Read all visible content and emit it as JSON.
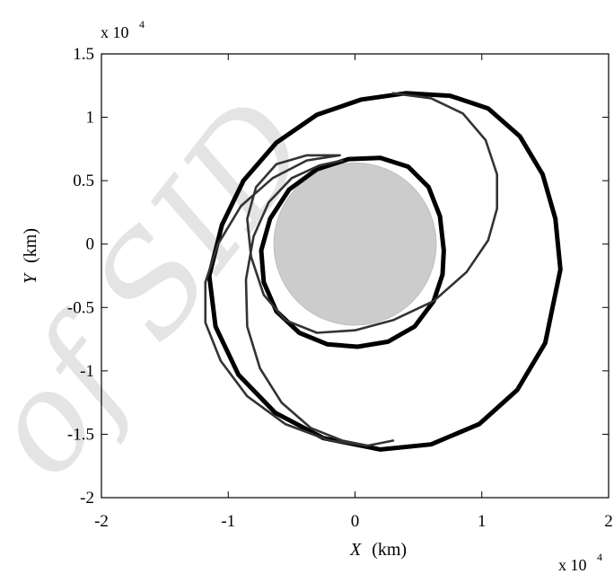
{
  "chart_data": {
    "type": "line",
    "title": "",
    "x_axis": {
      "label_var": "X",
      "label_unit": "(km)",
      "range": [
        -2,
        2
      ],
      "ticks": [
        -2,
        -1,
        0,
        1,
        2
      ],
      "tick_labels": [
        "-2",
        "-1",
        "0",
        "1",
        "2"
      ],
      "multiplier_base": "x 10",
      "multiplier_exp": "4"
    },
    "y_axis": {
      "label_var": "Y",
      "label_unit": "(km)",
      "range": [
        -2,
        1.5
      ],
      "ticks": [
        -2,
        -1.5,
        -1,
        -0.5,
        0,
        0.5,
        1,
        1.5
      ],
      "tick_labels": [
        "-2",
        "-1.5",
        "-1",
        "-0.5",
        "0",
        "0.5",
        "1",
        "1.5"
      ],
      "multiplier_base": "x 10",
      "multiplier_exp": "4"
    },
    "grid": false,
    "legend": null,
    "planet": {
      "center": [
        0,
        0
      ],
      "radius": 0.64,
      "fill": "#cccccc"
    },
    "series": [
      {
        "role": "inner orbit",
        "style": "thick-black",
        "points": [
          [
            0.7,
            -0.05
          ],
          [
            0.67,
            0.22
          ],
          [
            0.58,
            0.45
          ],
          [
            0.42,
            0.61
          ],
          [
            0.2,
            0.68
          ],
          [
            -0.05,
            0.67
          ],
          [
            -0.3,
            0.59
          ],
          [
            -0.52,
            0.43
          ],
          [
            -0.67,
            0.2
          ],
          [
            -0.74,
            -0.05
          ],
          [
            -0.72,
            -0.3
          ],
          [
            -0.62,
            -0.53
          ],
          [
            -0.44,
            -0.7
          ],
          [
            -0.22,
            -0.79
          ],
          [
            0.02,
            -0.81
          ],
          [
            0.26,
            -0.77
          ],
          [
            0.47,
            -0.65
          ],
          [
            0.62,
            -0.45
          ],
          [
            0.69,
            -0.24
          ],
          [
            0.7,
            -0.05
          ]
        ]
      },
      {
        "role": "outer orbit",
        "style": "thick-black",
        "points": [
          [
            1.62,
            -0.2
          ],
          [
            1.58,
            0.2
          ],
          [
            1.48,
            0.55
          ],
          [
            1.3,
            0.85
          ],
          [
            1.05,
            1.07
          ],
          [
            0.75,
            1.17
          ],
          [
            0.4,
            1.19
          ],
          [
            0.05,
            1.14
          ],
          [
            -0.3,
            1.02
          ],
          [
            -0.62,
            0.8
          ],
          [
            -0.88,
            0.5
          ],
          [
            -1.05,
            0.15
          ],
          [
            -1.15,
            -0.25
          ],
          [
            -1.1,
            -0.65
          ],
          [
            -0.92,
            -1.03
          ],
          [
            -0.63,
            -1.33
          ],
          [
            -0.25,
            -1.53
          ],
          [
            0.2,
            -1.62
          ],
          [
            0.6,
            -1.58
          ],
          [
            0.98,
            -1.42
          ],
          [
            1.28,
            -1.15
          ],
          [
            1.5,
            -0.78
          ],
          [
            1.62,
            -0.2
          ]
        ]
      },
      {
        "role": "transfer trajectory",
        "style": "thin-gray",
        "points": [
          [
            0.3,
            1.19
          ],
          [
            0.6,
            1.15
          ],
          [
            0.85,
            1.03
          ],
          [
            1.03,
            0.82
          ],
          [
            1.12,
            0.55
          ],
          [
            1.12,
            0.28
          ],
          [
            1.05,
            0.03
          ],
          [
            0.88,
            -0.22
          ],
          [
            0.62,
            -0.45
          ],
          [
            0.3,
            -0.6
          ],
          [
            0.0,
            -0.68
          ],
          [
            -0.3,
            -0.7
          ],
          [
            -0.55,
            -0.6
          ],
          [
            -0.72,
            -0.4
          ],
          [
            -0.82,
            -0.1
          ],
          [
            -0.85,
            0.2
          ],
          [
            -0.78,
            0.45
          ],
          [
            -0.62,
            0.63
          ],
          [
            -0.38,
            0.7
          ],
          [
            -0.12,
            0.7
          ],
          [
            -0.38,
            0.66
          ],
          [
            -0.65,
            0.52
          ],
          [
            -0.9,
            0.3
          ],
          [
            -1.08,
            0.0
          ],
          [
            -1.18,
            -0.3
          ],
          [
            -1.18,
            -0.62
          ],
          [
            -1.06,
            -0.92
          ],
          [
            -0.85,
            -1.2
          ],
          [
            -0.55,
            -1.42
          ],
          [
            -0.2,
            -1.55
          ],
          [
            0.1,
            -1.59
          ],
          [
            0.3,
            -1.55
          ],
          [
            0.1,
            -1.59
          ],
          [
            -0.1,
            -1.55
          ],
          [
            -0.35,
            -1.45
          ],
          [
            -0.58,
            -1.25
          ],
          [
            -0.75,
            -0.98
          ],
          [
            -0.85,
            -0.65
          ],
          [
            -0.86,
            -0.28
          ],
          [
            -0.8,
            0.06
          ],
          [
            -0.68,
            0.33
          ],
          [
            -0.5,
            0.52
          ],
          [
            -0.28,
            0.62
          ],
          [
            -0.1,
            0.66
          ]
        ]
      }
    ],
    "watermark": "of SID"
  }
}
